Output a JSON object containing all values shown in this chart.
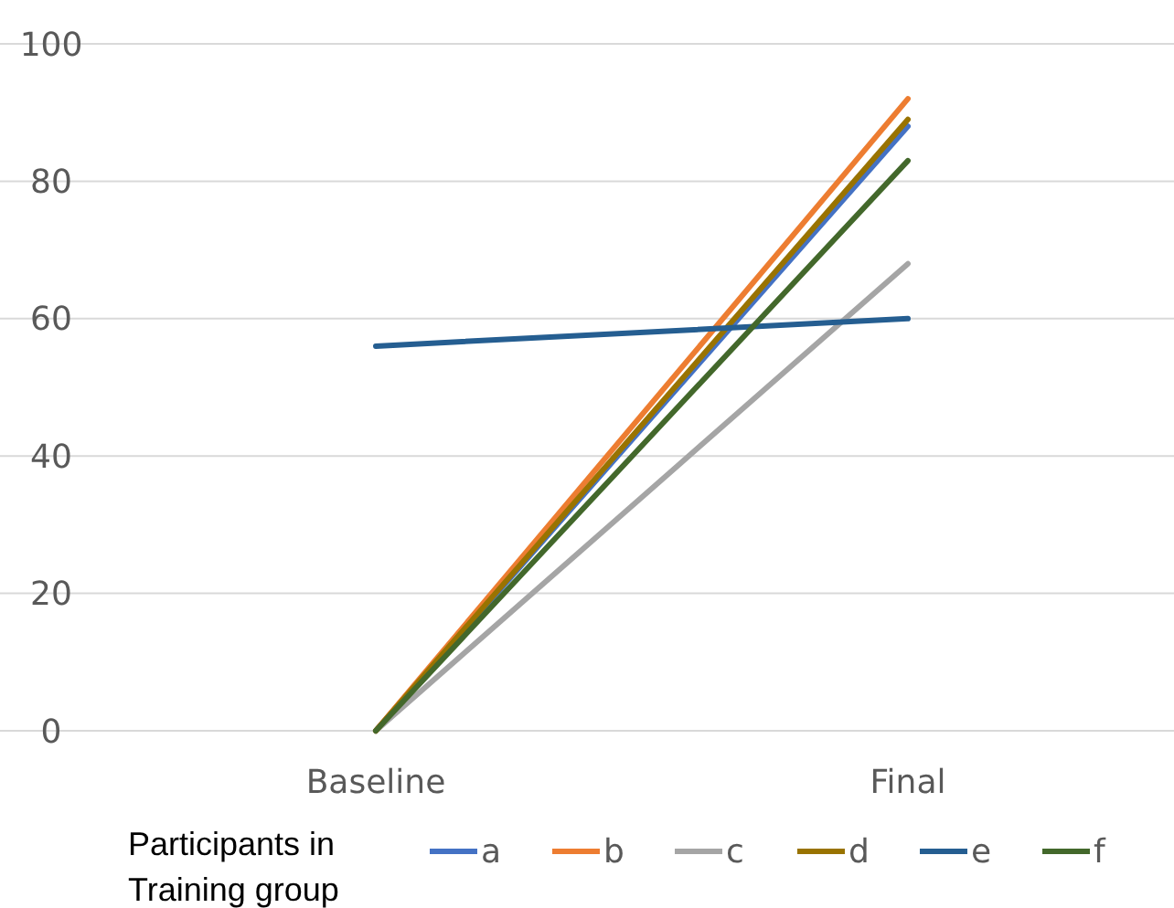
{
  "chart_data": {
    "type": "line",
    "categories": [
      "Baseline",
      "Final"
    ],
    "ylim": [
      0,
      100
    ],
    "yticks": [
      0,
      20,
      40,
      60,
      80,
      100
    ],
    "grid": "y",
    "legend": "bottom",
    "legend_title": "Participants in Training group",
    "marker": "none",
    "line_style": "solid",
    "series": [
      {
        "name": "a",
        "color": "#4472c4",
        "values": [
          0,
          88
        ]
      },
      {
        "name": "b",
        "color": "#ed7d31",
        "values": [
          0,
          92
        ]
      },
      {
        "name": "c",
        "color": "#a5a5a5",
        "values": [
          0,
          68
        ]
      },
      {
        "name": "d",
        "color": "#997300",
        "values": [
          0,
          89
        ]
      },
      {
        "name": "e",
        "color": "#255e91",
        "values": [
          56,
          60
        ]
      },
      {
        "name": "f",
        "color": "#43682b",
        "values": [
          0,
          83
        ]
      }
    ]
  }
}
